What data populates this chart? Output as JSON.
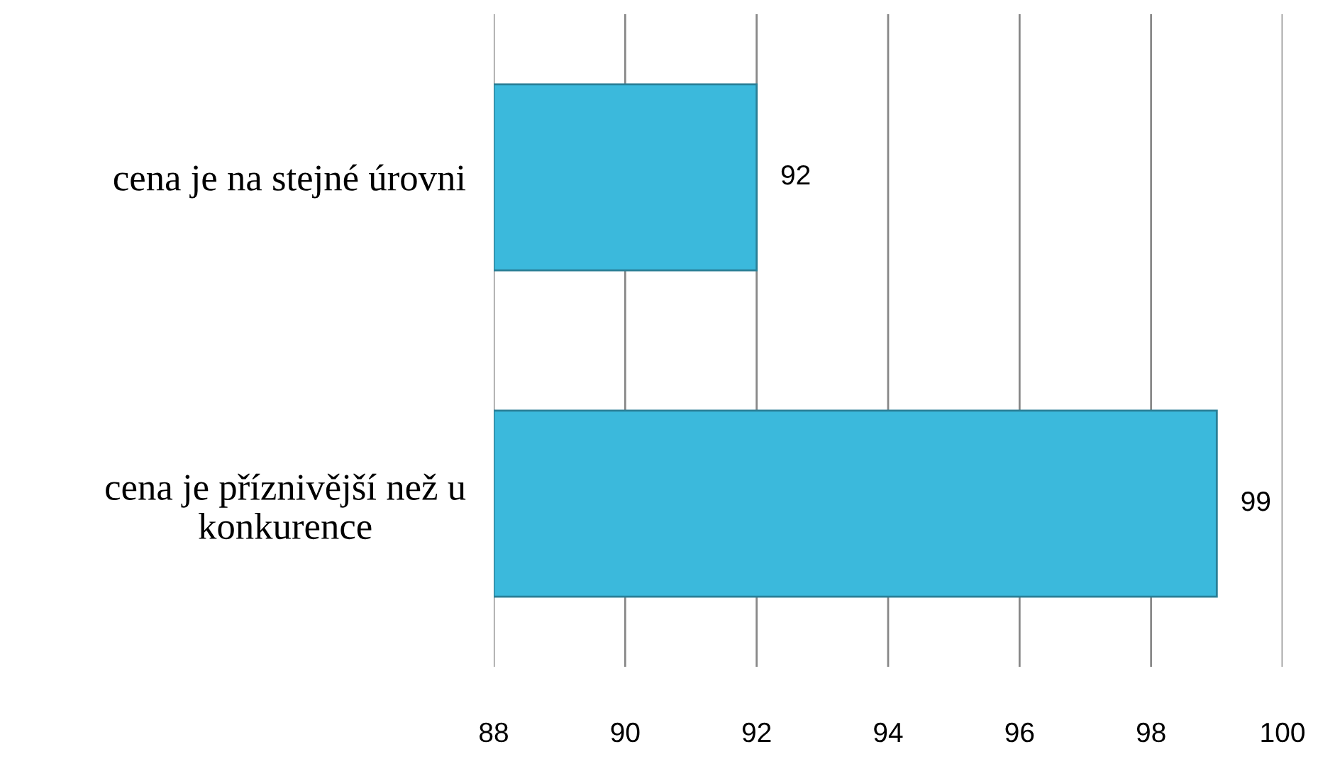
{
  "chart_data": {
    "type": "bar",
    "orientation": "horizontal",
    "categories": [
      "cena je na stejné úrovni",
      "cena je příznivější než u\nkonkurence"
    ],
    "values": [
      92,
      99
    ],
    "color": "#3bb9dc",
    "xlim": [
      88,
      100
    ],
    "xticks": [
      88,
      90,
      92,
      94,
      96,
      98,
      100
    ],
    "grid": "x",
    "data_labels": true
  }
}
